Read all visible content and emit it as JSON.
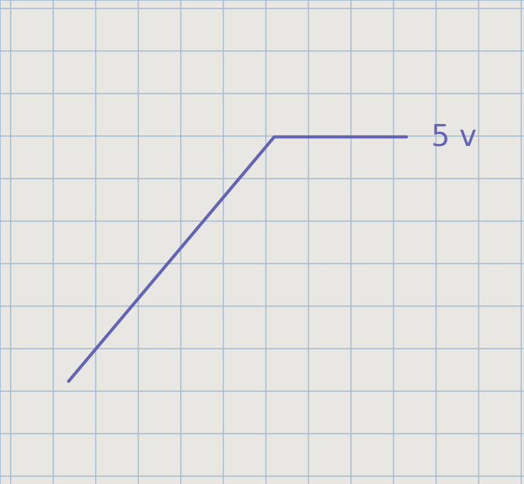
{
  "chart_data": {
    "type": "line",
    "x": [
      0,
      4.2,
      6.9
    ],
    "values": [
      0,
      5,
      5
    ],
    "color": "#6464b4",
    "xlim": [
      -1.4,
      9.3
    ],
    "ylim": [
      -2.1,
      7.8
    ],
    "xticks": [],
    "yticks": [],
    "tick_labels": false,
    "annotations": [
      {
        "text": "5 v",
        "x": 6.9,
        "y": 5
      }
    ]
  }
}
